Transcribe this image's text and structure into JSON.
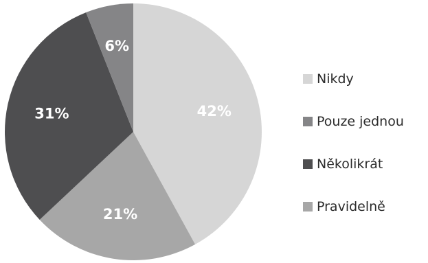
{
  "chart_data": {
    "type": "pie",
    "title": "",
    "start": "12 o'clock",
    "direction": "clockwise",
    "legend_position": "right",
    "slices": [
      {
        "name": "Nikdy",
        "value": 42,
        "label": "42%",
        "color": "#d6d6d6",
        "label_color": "#ffffff"
      },
      {
        "name": "Pravidelně",
        "value": 21,
        "label": "21%",
        "color": "#a7a7a7",
        "label_color": "#ffffff"
      },
      {
        "name": "Několikrát",
        "value": 31,
        "label": "31%",
        "color": "#4e4e50",
        "label_color": "#ffffff"
      },
      {
        "name": "Pouze jednou",
        "value": 6,
        "label": "6%",
        "color": "#858587",
        "label_color": "#ffffff"
      }
    ],
    "legend": [
      {
        "name": "Nikdy",
        "color": "#d6d6d6"
      },
      {
        "name": "Pouze jednou",
        "color": "#858587"
      },
      {
        "name": "Několikrát",
        "color": "#4e4e50"
      },
      {
        "name": "Pravidelně",
        "color": "#a7a7a7"
      }
    ]
  }
}
